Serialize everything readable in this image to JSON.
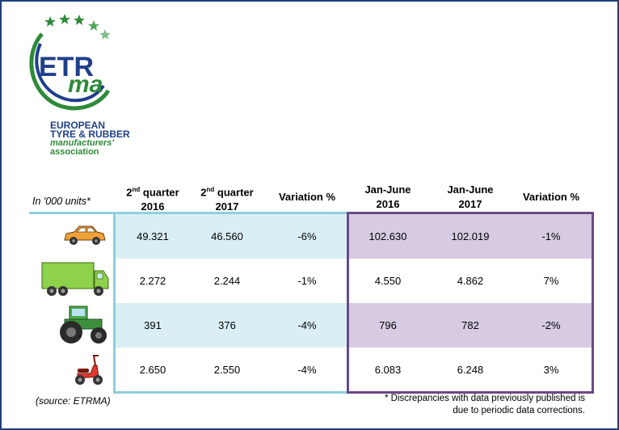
{
  "organization": {
    "logo_text_1": "ETR",
    "logo_text_2": "ma",
    "line1": "EUROPEAN",
    "line2": "TYRE & RUBBER",
    "line3": "manufacturers'",
    "line4": "association"
  },
  "table": {
    "units_label": "In '000 units*",
    "headers": {
      "q2_2016": {
        "sup": "nd",
        "top": "2",
        "rest": " quarter",
        "year": "2016"
      },
      "q2_2017": {
        "sup": "nd",
        "top": "2",
        "rest": " quarter",
        "year": "2017"
      },
      "var_q": "Variation %",
      "jj_2016": {
        "top": "Jan-June",
        "year": "2016"
      },
      "jj_2017": {
        "top": "Jan-June",
        "year": "2017"
      },
      "var_jj": "Variation %"
    },
    "rows": [
      {
        "icon": "car-icon",
        "q2_2016": "49.321",
        "q2_2017": "46.560",
        "var_q": "-6%",
        "jj_2016": "102.630",
        "jj_2017": "102.019",
        "var_jj": "-1%"
      },
      {
        "icon": "truck-icon",
        "q2_2016": "2.272",
        "q2_2017": "2.244",
        "var_q": "-1%",
        "jj_2016": "4.550",
        "jj_2017": "4.862",
        "var_jj": "7%"
      },
      {
        "icon": "tractor-icon",
        "q2_2016": "391",
        "q2_2017": "376",
        "var_q": "-4%",
        "jj_2016": "796",
        "jj_2017": "782",
        "var_jj": "-2%"
      },
      {
        "icon": "scooter-icon",
        "q2_2016": "2.650",
        "q2_2017": "2.550",
        "var_q": "-4%",
        "jj_2016": "6.083",
        "jj_2017": "6.248",
        "var_jj": "3%"
      }
    ]
  },
  "footer": {
    "source": "(source: ETRMA)",
    "note_line1": "* Discrepancies with data previously published is",
    "note_line2": "due to periodic data corrections."
  },
  "colors": {
    "light_blue": "#daeef5",
    "light_purple": "#d7cbe3",
    "blue_line": "#8fcfdd",
    "purple_line": "#6a4a86"
  }
}
